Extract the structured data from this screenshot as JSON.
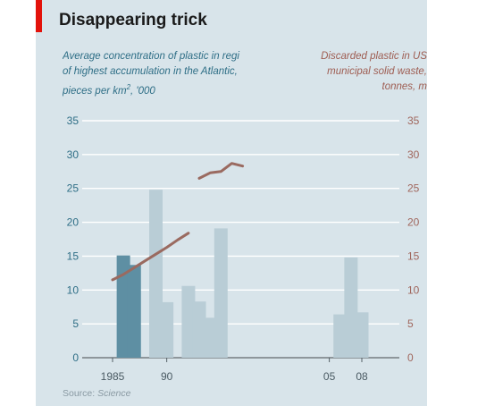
{
  "title": "Disappearing trick",
  "left_subtitle": {
    "line1": "Average concentration of plastic in regi",
    "line2": "of highest accumulation in the Atlantic,",
    "line3_pre": "pieces per km",
    "line3_sup": "2",
    "line3_post": ", '000"
  },
  "right_subtitle": {
    "line1": "Discarded plastic in US",
    "line2": "municipal solid waste,",
    "line3": "tonnes, m"
  },
  "source_label": "Source:",
  "source_name": "Science",
  "colors": {
    "bar_dark": "#5e8fa3",
    "bar_light": "#b9cdd6",
    "line": "#9a6a60",
    "left_axis": "#2e6e86",
    "right_axis": "#a0665c",
    "grid": "#ffffff",
    "panel": "#d8e4ea"
  },
  "chart_data": {
    "type": "bar+line",
    "title": "Disappearing trick",
    "x_tick_labels": [
      {
        "year": 1985,
        "label": "1985"
      },
      {
        "year": 1990,
        "label": "90"
      },
      {
        "year": 2005,
        "label": "05"
      },
      {
        "year": 2008,
        "label": "08"
      }
    ],
    "x_range": [
      1985,
      2008
    ],
    "y_left_ticks": [
      "0",
      "5",
      "10",
      "15",
      "20",
      "25",
      "30",
      "35"
    ],
    "y_right_ticks": [
      "0",
      "5",
      "10",
      "15",
      "20",
      "25",
      "30",
      "35"
    ],
    "ylim_left": [
      0,
      35
    ],
    "ylim_right": [
      0,
      35
    ],
    "grid": true,
    "bars": {
      "axis": "left",
      "name": "Average concentration of plastic in region of highest accumulation in the Atlantic, pieces per km², '000",
      "points": [
        {
          "year": 1986,
          "value": 15.1,
          "tone": "dark"
        },
        {
          "year": 1987,
          "value": 13.7,
          "tone": "dark"
        },
        {
          "year": 1989,
          "value": 24.8,
          "tone": "light"
        },
        {
          "year": 1990,
          "value": 8.2,
          "tone": "light"
        },
        {
          "year": 1992,
          "value": 10.6,
          "tone": "light"
        },
        {
          "year": 1993,
          "value": 8.3,
          "tone": "light"
        },
        {
          "year": 1994,
          "value": 5.9,
          "tone": "light"
        },
        {
          "year": 1995,
          "value": 19.1,
          "tone": "light"
        },
        {
          "year": 2006,
          "value": 6.4,
          "tone": "light"
        },
        {
          "year": 2007,
          "value": 14.8,
          "tone": "light"
        },
        {
          "year": 2008,
          "value": 6.7,
          "tone": "light"
        }
      ]
    },
    "line": {
      "axis": "right",
      "name": "Discarded plastic in US municipal solid waste, tonnes, m",
      "segments": [
        [
          [
            1985,
            11.5
          ],
          [
            1986,
            12.3
          ],
          [
            1987,
            13.3
          ],
          [
            1988,
            14.3
          ],
          [
            1989,
            15.3
          ],
          [
            1990,
            16.3
          ],
          [
            1991,
            17.4
          ],
          [
            1992,
            18.4
          ]
        ],
        [
          [
            1993,
            26.5
          ],
          [
            1994,
            27.3
          ],
          [
            1995,
            27.5
          ],
          [
            1996,
            28.7
          ],
          [
            1997,
            28.3
          ]
        ]
      ]
    }
  }
}
